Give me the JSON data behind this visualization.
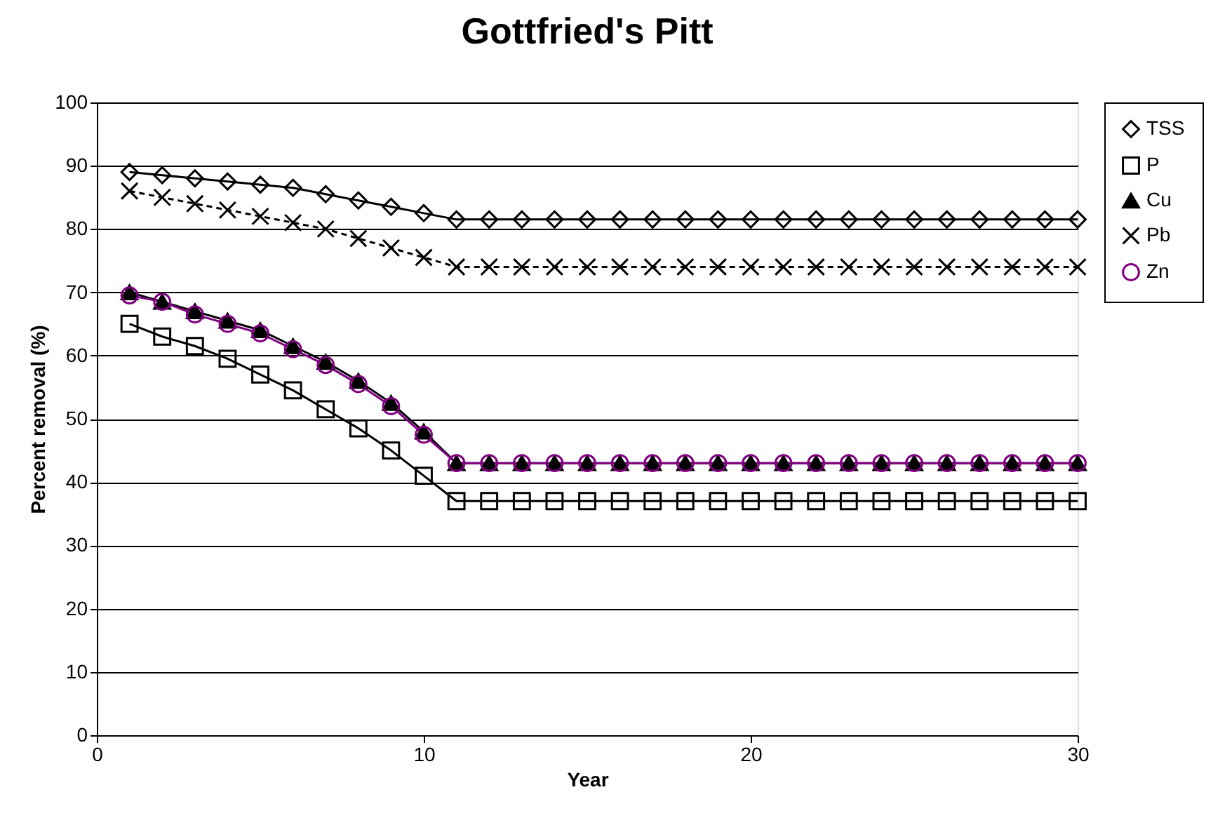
{
  "chart_data": {
    "type": "line",
    "title": "Gottfried's Pitt",
    "xlabel": "Year",
    "ylabel": "Percent removal (%)",
    "x": [
      1,
      2,
      3,
      4,
      5,
      6,
      7,
      8,
      9,
      10,
      11,
      12,
      13,
      14,
      15,
      16,
      17,
      18,
      19,
      20,
      21,
      22,
      23,
      24,
      25,
      26,
      27,
      28,
      29,
      30
    ],
    "xlim": [
      0,
      30
    ],
    "xticks": [
      0,
      10,
      20,
      30
    ],
    "ylim": [
      0,
      100
    ],
    "yticks": [
      0,
      10,
      20,
      30,
      40,
      50,
      60,
      70,
      80,
      90,
      100
    ],
    "grid": "y",
    "legend": "right",
    "series": [
      {
        "name": "TSS",
        "color": "#000000",
        "marker": "diamond",
        "line_style": "solid",
        "values": [
          89,
          88.5,
          88,
          87.5,
          87,
          86.5,
          85.5,
          84.5,
          83.5,
          82.5,
          81.5,
          81.5,
          81.5,
          81.5,
          81.5,
          81.5,
          81.5,
          81.5,
          81.5,
          81.5,
          81.5,
          81.5,
          81.5,
          81.5,
          81.5,
          81.5,
          81.5,
          81.5,
          81.5,
          81.5
        ]
      },
      {
        "name": "P",
        "color": "#000000",
        "marker": "square",
        "line_style": "solid",
        "values": [
          65,
          63,
          61.5,
          59.5,
          57,
          54.5,
          51.5,
          48.5,
          45,
          41,
          37,
          37,
          37,
          37,
          37,
          37,
          37,
          37,
          37,
          37,
          37,
          37,
          37,
          37,
          37,
          37,
          37,
          37,
          37,
          37
        ]
      },
      {
        "name": "Cu",
        "color": "#000000",
        "marker": "triangle",
        "line_style": "solid",
        "values": [
          70,
          68.5,
          67,
          65.5,
          64,
          61.5,
          59,
          56,
          52.5,
          48,
          43,
          43,
          43,
          43,
          43,
          43,
          43,
          43,
          43,
          43,
          43,
          43,
          43,
          43,
          43,
          43,
          43,
          43,
          43,
          43
        ]
      },
      {
        "name": "Pb",
        "color": "#000000",
        "marker": "cross",
        "line_style": "dashed",
        "values": [
          86,
          85,
          84,
          83,
          82,
          81,
          80,
          78.5,
          77,
          75.5,
          74,
          74,
          74,
          74,
          74,
          74,
          74,
          74,
          74,
          74,
          74,
          74,
          74,
          74,
          74,
          74,
          74,
          74,
          74,
          74
        ]
      },
      {
        "name": "Zn",
        "color": "#800080",
        "marker": "circle",
        "line_style": "solid",
        "values": [
          69.5,
          68.5,
          66.5,
          65,
          63.5,
          61,
          58.5,
          55.5,
          52,
          47.5,
          43,
          43,
          43,
          43,
          43,
          43,
          43,
          43,
          43,
          43,
          43,
          43,
          43,
          43,
          43,
          43,
          43,
          43,
          43,
          43
        ]
      }
    ]
  }
}
